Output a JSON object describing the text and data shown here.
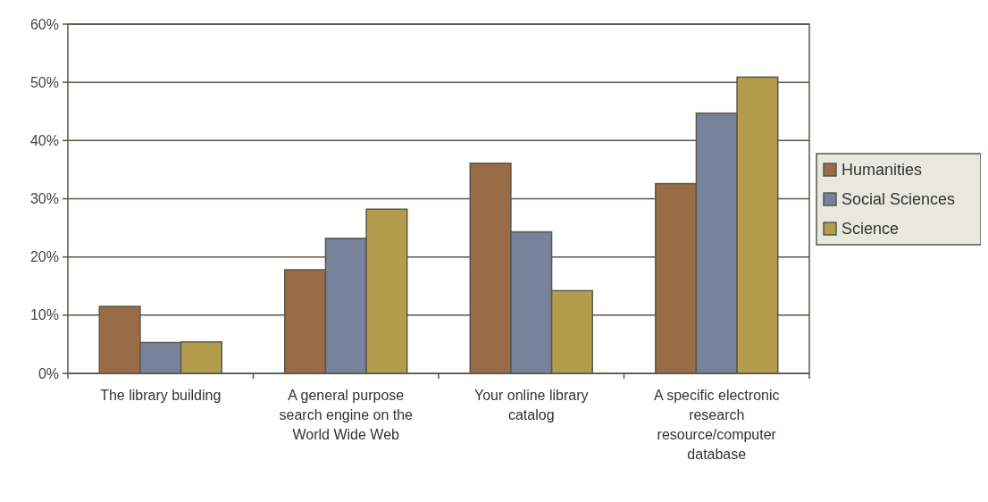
{
  "chart_data": {
    "type": "bar",
    "categories": [
      "The library building",
      "A general purpose search engine on the World Wide Web",
      "Your online library catalog",
      "A specific electronic research resource/computer database"
    ],
    "series": [
      {
        "name": "Humanities",
        "color": "#996c47",
        "values": [
          11.5,
          17.8,
          36.1,
          32.6
        ]
      },
      {
        "name": "Social Sciences",
        "color": "#77829b",
        "values": [
          5.3,
          23.2,
          24.3,
          44.7
        ]
      },
      {
        "name": "Science",
        "color": "#b39c4b",
        "values": [
          5.4,
          28.2,
          14.2,
          50.9
        ]
      }
    ],
    "ylim": [
      0,
      60
    ],
    "yticks": [
      {
        "value": 0,
        "label": "0%"
      },
      {
        "value": 10,
        "label": "10%"
      },
      {
        "value": 20,
        "label": "20%"
      },
      {
        "value": 30,
        "label": "30%"
      },
      {
        "value": 40,
        "label": "40%"
      },
      {
        "value": 50,
        "label": "50%"
      },
      {
        "value": 60,
        "label": "60%"
      }
    ],
    "grid": "y",
    "legend": "right"
  }
}
